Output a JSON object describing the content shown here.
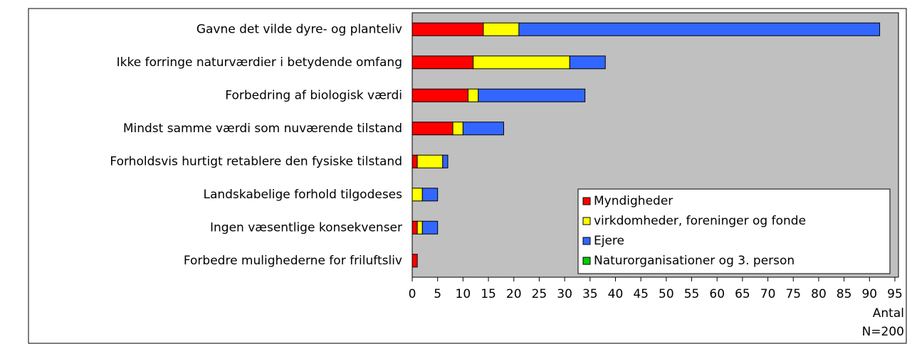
{
  "chart_data": {
    "type": "stacked_barh",
    "categories": [
      "Gavne det vilde dyre- og planteliv",
      "Ikke forringe naturværdier i betydende omfang",
      "Forbedring af biologisk værdi",
      "Mindst samme værdi som nuværende tilstand",
      "Forholdsvis hurtigt retablere den fysiske tilstand",
      "Landskabelige forhold tilgodeses",
      "Ingen væsentlige konsekvenser",
      "Forbedre mulighederne for friluftsliv"
    ],
    "series": [
      {
        "name": "Myndigheder",
        "color": "#ff0000",
        "values": [
          14,
          12,
          11,
          8,
          1,
          0,
          1,
          1
        ]
      },
      {
        "name": "virkdomheder, foreninger og fonde",
        "color": "#ffff00",
        "values": [
          7,
          19,
          2,
          2,
          5,
          2,
          1,
          0
        ]
      },
      {
        "name": "Ejere",
        "color": "#3366ff",
        "values": [
          71,
          7,
          21,
          8,
          1,
          3,
          3,
          0
        ]
      },
      {
        "name": "Naturorganisationer og 3. person",
        "color": "#00cc00",
        "values": [
          0,
          0,
          0,
          0,
          0,
          0,
          0,
          0
        ]
      }
    ],
    "xlim": [
      0,
      95
    ],
    "xticks": [
      0,
      5,
      10,
      15,
      20,
      25,
      30,
      35,
      40,
      45,
      50,
      55,
      60,
      65,
      70,
      75,
      80,
      85,
      90,
      95
    ],
    "xlabel": "Antal",
    "note": "N=200",
    "legend": "lower right"
  }
}
